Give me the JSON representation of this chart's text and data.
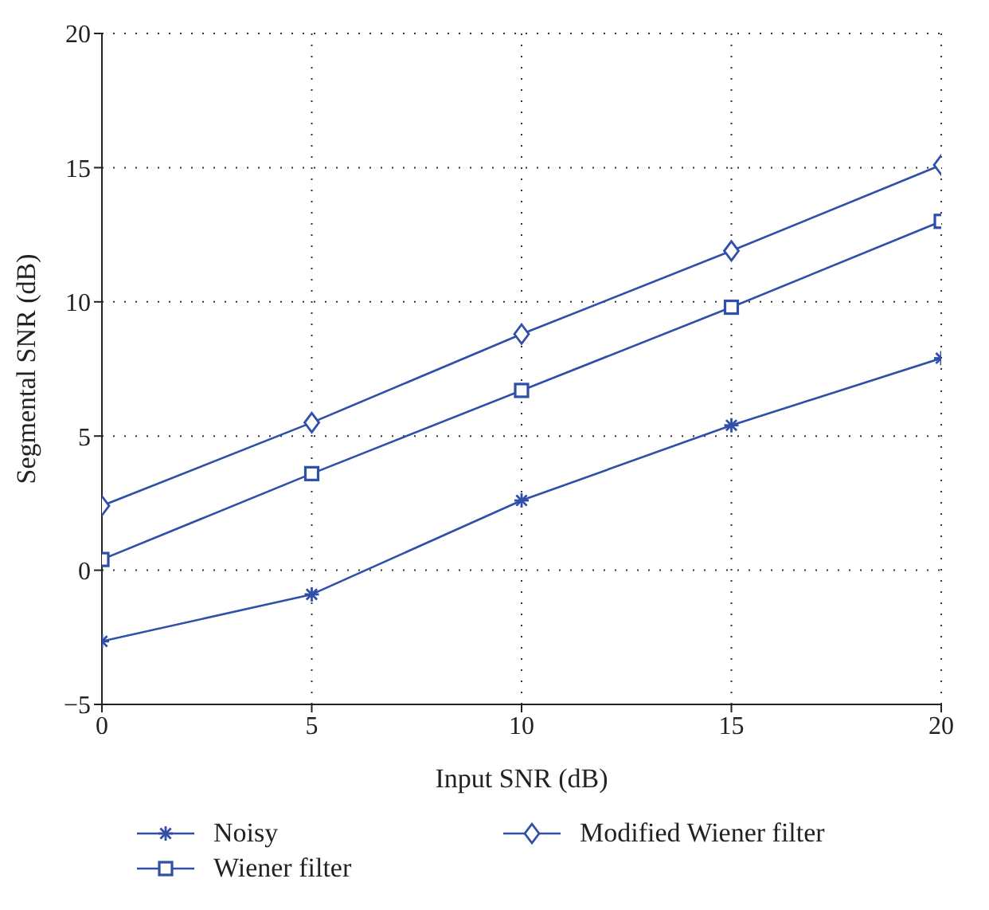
{
  "chart_data": {
    "type": "line",
    "xlabel": "Input SNR (dB)",
    "ylabel": "Segmental SNR (dB)",
    "x": [
      0,
      5,
      10,
      15,
      20
    ],
    "series": [
      {
        "name": "Noisy",
        "color": "#2f4fa8",
        "marker": "cross",
        "values": [
          -2.65,
          -0.9,
          2.6,
          5.4,
          7.9
        ]
      },
      {
        "name": "Wiener filter",
        "color": "#2f4fa8",
        "marker": "square",
        "values": [
          0.4,
          3.6,
          6.7,
          9.8,
          13.0
        ]
      },
      {
        "name": "Modified Wiener filter",
        "color": "#2f4fa8",
        "marker": "diamond",
        "values": [
          2.4,
          5.5,
          8.8,
          11.9,
          15.1
        ]
      }
    ],
    "xlim": [
      0,
      20
    ],
    "xticks": [
      0,
      5,
      10,
      15,
      20
    ],
    "ylim": [
      -5,
      20
    ],
    "yticks": [
      {
        "value": -5,
        "label": "−5"
      },
      0,
      5,
      10,
      15,
      20
    ],
    "grid": true,
    "legend": "bottom",
    "line_style": "solid"
  }
}
